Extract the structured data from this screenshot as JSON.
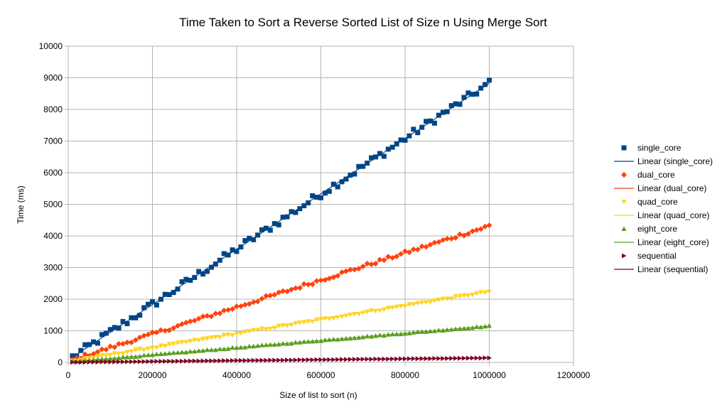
{
  "chart_data": {
    "type": "scatter",
    "title": "Time Taken to Sort a Reverse Sorted List of Size n Using Merge Sort",
    "xlabel": "Size of list to sort (n)",
    "ylabel": "Time (ms)",
    "xlim": [
      0,
      1200000
    ],
    "ylim": [
      0,
      10000
    ],
    "x_ticks": [
      "0",
      "200000",
      "400000",
      "600000",
      "800000",
      "1000000",
      "1200000"
    ],
    "y_ticks": [
      "0",
      "1000",
      "2000",
      "3000",
      "4000",
      "5000",
      "6000",
      "7000",
      "8000",
      "9000",
      "10000"
    ],
    "grid": true,
    "legend_position": "right",
    "x_start": 10000,
    "x_step": 10000,
    "point_count": 100,
    "series": [
      {
        "name": "single_core",
        "trend_label": "Linear (single_core)",
        "marker": "square",
        "color": "#004586",
        "slope": 0.00875,
        "intercept": 80,
        "noise": 130
      },
      {
        "name": "dual_core",
        "trend_label": "Linear (dual_core)",
        "marker": "diamond",
        "color": "#ff420e",
        "slope": 0.00428,
        "intercept": 40,
        "noise": 55
      },
      {
        "name": "quad_core",
        "trend_label": "Linear (quad_core)",
        "marker": "triangle-down",
        "color": "#ffd320",
        "slope": 0.00222,
        "intercept": 20,
        "noise": 30
      },
      {
        "name": "eight_core",
        "trend_label": "Linear (eight_core)",
        "marker": "triangle-up",
        "color": "#579d1c",
        "slope": 0.00114,
        "intercept": 10,
        "noise": 14
      },
      {
        "name": "sequential",
        "trend_label": "Linear (sequential)",
        "marker": "triangle-right",
        "color": "#7e0021",
        "slope": 0.00014,
        "intercept": 2,
        "noise": 3
      }
    ]
  }
}
